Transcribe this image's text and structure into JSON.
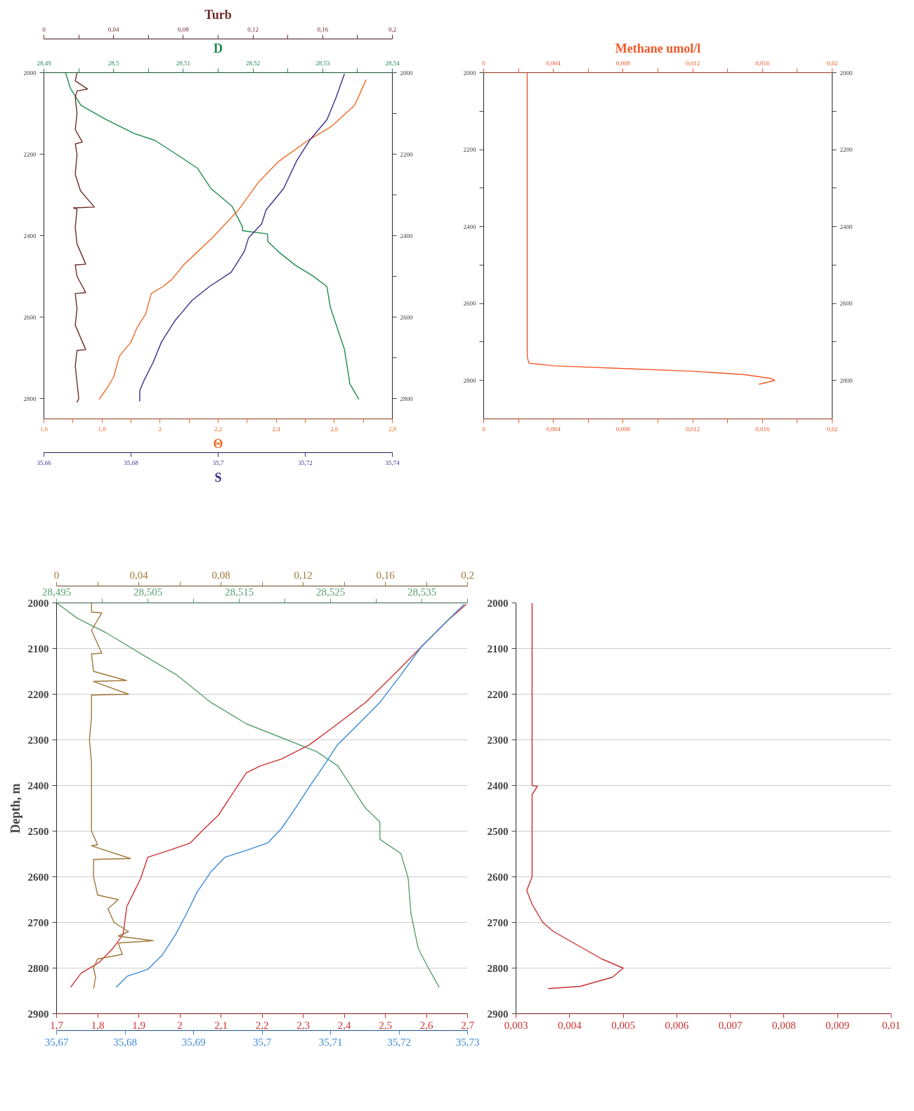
{
  "chart_data": [
    {
      "type": "line",
      "orientation": "horizontal",
      "xlabel": "Θ",
      "x2label": "D",
      "xlim": [
        1.6,
        2.8
      ],
      "xticks": [
        {
          "value": 1.6,
          "label": "1,6"
        },
        {
          "value": 1.7,
          "label": null
        },
        {
          "value": 1.8,
          "label": "1,8"
        },
        {
          "value": 1.9,
          "label": null
        },
        {
          "value": 2,
          "label": "2"
        },
        {
          "value": 2.1,
          "label": null
        },
        {
          "value": 2.2,
          "label": "2,2"
        },
        {
          "value": 2.3,
          "label": null
        },
        {
          "value": 2.4,
          "label": "2,4"
        },
        {
          "value": 2.5,
          "label": null
        },
        {
          "value": 2.6,
          "label": "2,6"
        },
        {
          "value": 2.7,
          "label": null
        },
        {
          "value": 2.8,
          "label": "2,8"
        }
      ],
      "x2lim": [
        28.49,
        28.54
      ],
      "x2ticks": [
        {
          "value": 28.49,
          "label": "28,49"
        },
        {
          "value": 28.495,
          "label": null
        },
        {
          "value": 28.5,
          "label": "28,5"
        },
        {
          "value": 28.505,
          "label": null
        },
        {
          "value": 28.51,
          "label": "28,51"
        },
        {
          "value": 28.515,
          "label": null
        },
        {
          "value": 28.52,
          "label": "28,52"
        },
        {
          "value": 28.525,
          "label": null
        },
        {
          "value": 28.53,
          "label": "28,53"
        },
        {
          "value": 28.535,
          "label": null
        },
        {
          "value": 28.54,
          "label": "28,54"
        }
      ],
      "ylim": [
        2850,
        2000
      ],
      "yticks": [
        2000,
        2200,
        2400,
        2600,
        2800
      ],
      "y2lim": [
        2850,
        2000
      ],
      "y2ticks": [
        2000,
        {
          "value": 2100,
          "label": null
        },
        2200,
        {
          "value": 2300,
          "label": null
        },
        2400,
        {
          "value": 2500,
          "label": null
        },
        2600,
        {
          "value": 2700,
          "label": null
        },
        2800
      ],
      "series": [
        {
          "axis": "x2",
          "color": "#1f8a4f",
          "x": [
            2000,
            2038,
            2080,
            2115,
            2149,
            2166,
            2200,
            2234,
            2285,
            2328,
            2379,
            2388,
            2396,
            2414,
            2439,
            2473,
            2499,
            2525,
            2576,
            2627,
            2678,
            2730,
            2764,
            2802
          ],
          "values": [
            28.4931,
            28.4938,
            28.4953,
            28.4989,
            28.5029,
            28.5059,
            28.509,
            28.512,
            28.514,
            28.517,
            28.5185,
            28.5185,
            28.5221,
            28.5221,
            28.5236,
            28.5261,
            28.5286,
            28.5306,
            28.5311,
            28.5321,
            28.5331,
            28.5336,
            28.5339,
            28.5352
          ]
        },
        {
          "color": "#f06a28",
          "x": [
            2017,
            2080,
            2132,
            2166,
            2217,
            2268,
            2337,
            2405,
            2439,
            2473,
            2508,
            2525,
            2542,
            2593,
            2627,
            2661,
            2696,
            2747,
            2772,
            2802
          ],
          "values": [
            2.71,
            2.67,
            2.59,
            2.51,
            2.41,
            2.34,
            2.27,
            2.18,
            2.13,
            2.08,
            2.04,
            2.01,
            1.97,
            1.95,
            1.92,
            1.9,
            1.86,
            1.84,
            1.82,
            1.79
          ]
        }
      ]
    },
    {
      "type": "line",
      "orientation": "horizontal",
      "tick_labels": "x",
      "xlabel": "S",
      "x2label": "Turb",
      "xlim": [
        35.66,
        35.74
      ],
      "xticks": [
        {
          "value": 35.66,
          "label": "35,66"
        },
        {
          "value": 35.68,
          "label": "35,68"
        },
        {
          "value": 35.7,
          "label": "35,7"
        },
        {
          "value": 35.72,
          "label": "35,72"
        },
        {
          "value": 35.74,
          "label": "35,74"
        }
      ],
      "x2lim": [
        0,
        0.2
      ],
      "x2ticks": [
        {
          "value": 0,
          "label": "0"
        },
        {
          "value": 0.02,
          "label": null
        },
        {
          "value": 0.04,
          "label": "0,04"
        },
        {
          "value": 0.06,
          "label": null
        },
        {
          "value": 0.08,
          "label": "0,08"
        },
        {
          "value": 0.1,
          "label": null
        },
        {
          "value": 0.12,
          "label": "0,12"
        },
        {
          "value": 0.14,
          "label": null
        },
        {
          "value": 0.16,
          "label": "0,16"
        },
        {
          "value": 0.18,
          "label": null
        },
        {
          "value": 0.2,
          "label": "0,2"
        }
      ],
      "ylim": [
        2850,
        2000
      ],
      "series": [
        {
          "axis": "x2",
          "color": "#6e2b2b",
          "x": [
            2000,
            2020,
            2040,
            2045,
            2060,
            2100,
            2140,
            2170,
            2175,
            2200,
            2250,
            2290,
            2330,
            2332,
            2335,
            2380,
            2420,
            2470,
            2472,
            2500,
            2540,
            2542,
            2580,
            2620,
            2680,
            2682,
            2720,
            2760,
            2800,
            2810
          ],
          "values": [
            0.019,
            0.018,
            0.025,
            0.019,
            0.018,
            0.019,
            0.018,
            0.022,
            0.018,
            0.019,
            0.018,
            0.021,
            0.029,
            0.017,
            0.019,
            0.018,
            0.019,
            0.024,
            0.018,
            0.019,
            0.024,
            0.018,
            0.019,
            0.018,
            0.024,
            0.019,
            0.018,
            0.019,
            0.02,
            0.019
          ]
        },
        {
          "color": "#3b2d8c",
          "x": [
            2003,
            2063,
            2115,
            2166,
            2217,
            2285,
            2337,
            2371,
            2405,
            2439,
            2490,
            2525,
            2559,
            2610,
            2661,
            2713,
            2755,
            2781,
            2807
          ],
          "values": [
            35.729,
            35.727,
            35.725,
            35.721,
            35.718,
            35.715,
            35.711,
            35.71,
            35.707,
            35.706,
            35.703,
            35.698,
            35.694,
            35.69,
            35.687,
            35.685,
            35.683,
            35.682,
            35.682
          ]
        }
      ]
    },
    {
      "type": "line",
      "orientation": "horizontal",
      "x2label": "Methane umol/l",
      "xlim": [
        0,
        0.02
      ],
      "xticks": [
        0,
        {
          "value": 0.002,
          "label": null
        },
        {
          "value": 0.004,
          "label": "0,004"
        },
        {
          "value": 0.006,
          "label": null
        },
        {
          "value": 0.008,
          "label": "0,008"
        },
        {
          "value": 0.01,
          "label": null
        },
        {
          "value": 0.012,
          "label": "0,012"
        },
        {
          "value": 0.014,
          "label": null
        },
        {
          "value": 0.016,
          "label": "0,016"
        },
        {
          "value": 0.018,
          "label": null
        },
        {
          "value": 0.02,
          "label": "0,02"
        }
      ],
      "x2lim": [
        0,
        0.02
      ],
      "x2ticks": [
        0,
        {
          "value": 0.002,
          "label": null
        },
        {
          "value": 0.004,
          "label": "0,004"
        },
        {
          "value": 0.006,
          "label": null
        },
        {
          "value": 0.008,
          "label": "0,008"
        },
        {
          "value": 0.01,
          "label": null
        },
        {
          "value": 0.012,
          "label": "0,012"
        },
        {
          "value": 0.014,
          "label": null
        },
        {
          "value": 0.016,
          "label": "0,016"
        },
        {
          "value": 0.018,
          "label": null
        },
        {
          "value": 0.02,
          "label": "0,02"
        }
      ],
      "ylim": [
        2900,
        2000
      ],
      "yticks": [
        2000,
        {
          "value": 2100,
          "label": null
        },
        2200,
        {
          "value": 2300,
          "label": null
        },
        2400,
        {
          "value": 2500,
          "label": null
        },
        2600,
        {
          "value": 2700,
          "label": null
        },
        2800
      ],
      "y2lim": [
        2900,
        2000
      ],
      "y2ticks": [
        2000,
        {
          "value": 2100,
          "label": null
        },
        2200,
        {
          "value": 2300,
          "label": null
        },
        2400,
        {
          "value": 2500,
          "label": null
        },
        2600,
        {
          "value": 2700,
          "label": null
        },
        2800
      ],
      "series": [
        {
          "color": "#f05a2a",
          "x": [
            2000,
            2740,
            2755,
            2762,
            2770,
            2776,
            2785,
            2795,
            2800,
            2810
          ],
          "values": [
            0.0025,
            0.0025,
            0.0026,
            0.004,
            0.0085,
            0.012,
            0.015,
            0.0165,
            0.0167,
            0.0158
          ]
        }
      ]
    },
    {
      "type": "line",
      "orientation": "horizontal",
      "ylabel": "Depth, m",
      "grid": "y",
      "xlim": [
        1.7,
        2.7
      ],
      "xticks": [
        {
          "value": 1.7,
          "label": "1,7"
        },
        {
          "value": 1.8,
          "label": "1,8"
        },
        {
          "value": 1.9,
          "label": "1,9"
        },
        2,
        {
          "value": 2.1,
          "label": "2,1"
        },
        {
          "value": 2.2,
          "label": "2,2"
        },
        {
          "value": 2.3,
          "label": "2,3"
        },
        {
          "value": 2.4,
          "label": "2,4"
        },
        {
          "value": 2.5,
          "label": "2,5"
        },
        {
          "value": 2.6,
          "label": "2,6"
        },
        {
          "value": 2.7,
          "label": "2,7"
        }
      ],
      "x2lim": [
        28.495,
        28.54
      ],
      "x2ticks": [
        {
          "value": 28.495,
          "label": "28,495"
        },
        {
          "value": 28.5,
          "label": null
        },
        {
          "value": 28.505,
          "label": "28,505"
        },
        {
          "value": 28.51,
          "label": null
        },
        {
          "value": 28.515,
          "label": "28,515"
        },
        {
          "value": 28.52,
          "label": null
        },
        {
          "value": 28.525,
          "label": "28,525"
        },
        {
          "value": 28.53,
          "label": null
        },
        {
          "value": 28.535,
          "label": "28,535"
        },
        {
          "value": 28.54,
          "label": null
        }
      ],
      "ylim": [
        2900,
        2000
      ],
      "yticks": [
        2000,
        2100,
        2200,
        2300,
        2400,
        2500,
        2600,
        2700,
        2800,
        2900
      ],
      "series": [
        {
          "axis": "x2",
          "color": "#5aa070",
          "x": [
            2000,
            2034,
            2065,
            2111,
            2157,
            2218,
            2265,
            2295,
            2326,
            2357,
            2403,
            2449,
            2480,
            2518,
            2549,
            2603,
            2680,
            2757,
            2803,
            2842
          ],
          "values": [
            28.495,
            28.4973,
            28.5004,
            28.5042,
            28.5081,
            28.5119,
            28.5158,
            28.5196,
            28.5235,
            28.5258,
            28.5273,
            28.5288,
            28.5304,
            28.5304,
            28.5327,
            28.5335,
            28.5338,
            28.5346,
            28.5358,
            28.5369
          ]
        },
        {
          "color": "#d03030",
          "x": [
            2003,
            2034,
            2095,
            2157,
            2218,
            2265,
            2311,
            2342,
            2357,
            2372,
            2418,
            2465,
            2495,
            2526,
            2542,
            2557,
            2603,
            2634,
            2665,
            2726,
            2757,
            2788,
            2811,
            2842
          ],
          "values": [
            2.697,
            2.657,
            2.589,
            2.521,
            2.452,
            2.384,
            2.315,
            2.247,
            2.196,
            2.162,
            2.128,
            2.094,
            2.059,
            2.025,
            1.974,
            1.922,
            1.905,
            1.888,
            1.871,
            1.862,
            1.837,
            1.803,
            1.76,
            1.734
          ]
        }
      ]
    },
    {
      "type": "line",
      "orientation": "horizontal",
      "tick_labels": "x",
      "xlim": [
        35.67,
        35.73
      ],
      "xticks": [
        {
          "value": 35.67,
          "label": "35,67"
        },
        {
          "value": 35.68,
          "label": "35,68"
        },
        {
          "value": 35.69,
          "label": "35,69"
        },
        {
          "value": 35.7,
          "label": "35,7"
        },
        {
          "value": 35.71,
          "label": "35,71"
        },
        {
          "value": 35.72,
          "label": "35,72"
        },
        {
          "value": 35.73,
          "label": "35,73"
        }
      ],
      "x2lim": [
        0,
        0.2
      ],
      "x2ticks": [
        0,
        {
          "value": 0.02,
          "label": null
        },
        {
          "value": 0.04,
          "label": "0,04"
        },
        {
          "value": 0.06,
          "label": null
        },
        {
          "value": 0.08,
          "label": "0,08"
        },
        {
          "value": 0.1,
          "label": null
        },
        {
          "value": 0.12,
          "label": "0,12"
        },
        {
          "value": 0.14,
          "label": null
        },
        {
          "value": 0.16,
          "label": "0,16"
        },
        {
          "value": 0.18,
          "label": null
        },
        {
          "value": 0.2,
          "label": "0,2"
        }
      ],
      "ylim": [
        2900,
        2000
      ],
      "series": [
        {
          "axis": "x2",
          "color": "#a0783a",
          "x": [
            2000,
            2020,
            2022,
            2060,
            2110,
            2112,
            2150,
            2170,
            2172,
            2200,
            2202,
            2250,
            2300,
            2350,
            2400,
            2450,
            2500,
            2530,
            2532,
            2560,
            2562,
            2600,
            2640,
            2650,
            2670,
            2700,
            2720,
            2730,
            2740,
            2745,
            2770,
            2780,
            2800,
            2820,
            2845
          ],
          "values": [
            0.017,
            0.017,
            0.022,
            0.017,
            0.022,
            0.017,
            0.018,
            0.034,
            0.018,
            0.035,
            0.017,
            0.017,
            0.016,
            0.017,
            0.017,
            0.017,
            0.017,
            0.02,
            0.017,
            0.036,
            0.018,
            0.018,
            0.02,
            0.03,
            0.025,
            0.028,
            0.035,
            0.03,
            0.047,
            0.03,
            0.032,
            0.02,
            0.018,
            0.019,
            0.018
          ]
        },
        {
          "color": "#3a8ad8",
          "x": [
            2003,
            2034,
            2095,
            2157,
            2218,
            2265,
            2311,
            2357,
            2403,
            2449,
            2495,
            2526,
            2542,
            2557,
            2588,
            2634,
            2680,
            2726,
            2772,
            2803,
            2818,
            2842
          ],
          "values": [
            35.7295,
            35.7274,
            35.7233,
            35.7203,
            35.7172,
            35.7141,
            35.711,
            35.709,
            35.7069,
            35.7049,
            35.7028,
            35.7008,
            35.6977,
            35.6946,
            35.6926,
            35.6905,
            35.689,
            35.6874,
            35.6854,
            35.6833,
            35.6803,
            35.6787
          ]
        }
      ]
    },
    {
      "type": "line",
      "orientation": "horizontal",
      "grid": "y",
      "xlim": [
        0.003,
        0.01
      ],
      "xticks": [
        {
          "value": 0.003,
          "label": "0,003"
        },
        {
          "value": 0.004,
          "label": "0,004"
        },
        {
          "value": 0.005,
          "label": "0,005"
        },
        {
          "value": 0.006,
          "label": "0,006"
        },
        {
          "value": 0.007,
          "label": "0,007"
        },
        {
          "value": 0.008,
          "label": "0,008"
        },
        {
          "value": 0.009,
          "label": "0,009"
        },
        {
          "value": 0.01,
          "label": "0,01"
        }
      ],
      "ylim": [
        2900,
        2000
      ],
      "yticks": [
        2000,
        2100,
        2200,
        2300,
        2400,
        2500,
        2600,
        2700,
        2800,
        2900
      ],
      "series": [
        {
          "color": "#c83030",
          "x": [
            2000,
            2400,
            2402,
            2420,
            2600,
            2630,
            2660,
            2680,
            2700,
            2720,
            2740,
            2760,
            2780,
            2800,
            2820,
            2830,
            2840,
            2845
          ],
          "values": [
            0.0033,
            0.0033,
            0.0034,
            0.0033,
            0.0033,
            0.0032,
            0.0033,
            0.0034,
            0.0035,
            0.0037,
            0.004,
            0.0043,
            0.0046,
            0.005,
            0.0048,
            0.0045,
            0.0042,
            0.0036
          ]
        }
      ]
    }
  ]
}
